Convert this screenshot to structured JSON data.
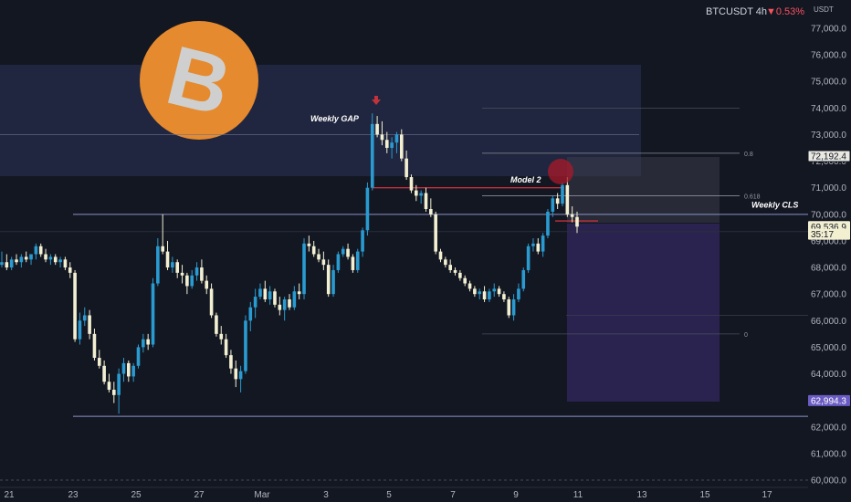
{
  "header": {
    "symbol": "BTCUSDT 4h",
    "change": "▼0.53%",
    "currency": "USDT"
  },
  "colors": {
    "background": "#131722",
    "up": "#2a9bd0",
    "down": "#f3f0d2",
    "gap_zone": "#222842",
    "target_zone": "#2a2350",
    "level_line": "#8b93c9",
    "model_line": "#c2313c",
    "logo_orange": "#e58a2e",
    "logo_b": "#cfcfcf"
  },
  "logo": {
    "icon": "bitcoin-logo",
    "letter": "B"
  },
  "chart_data": {
    "type": "candlestick",
    "ylim": [
      60000,
      78000
    ],
    "y_ticks": [
      "60,000.0",
      "61,000.0",
      "62,000.0",
      "63,000.0",
      "64,000.0",
      "65,000.0",
      "66,000.0",
      "67,000.0",
      "68,000.0",
      "69,000.0",
      "70,000.0",
      "71,000.0",
      "72,000.0",
      "73,000.0",
      "74,000.0",
      "75,000.0",
      "76,000.0",
      "77,000.0"
    ],
    "x_ticks": [
      "21",
      "23",
      "25",
      "27",
      "Mar",
      "3",
      "5",
      "7",
      "9",
      "11",
      "13",
      "15",
      "17"
    ],
    "price_labels": [
      {
        "name": "top-fib-label",
        "value": "72,192.4",
        "y": 72192.4
      },
      {
        "name": "current-price-label",
        "value": "69,536.9",
        "y": 69536.9
      },
      {
        "name": "countdown-label",
        "value": "35:17",
        "y": 69250
      },
      {
        "name": "target-label",
        "value": "62,994.3",
        "y": 62994.3
      }
    ],
    "annotations": [
      {
        "name": "weekly-gap-label",
        "text": "Weekly GAP"
      },
      {
        "name": "model2-label",
        "text": "Model 2"
      },
      {
        "name": "weekly-cls-label",
        "text": "Weekly CLS"
      }
    ],
    "fib_levels": [
      {
        "label": "0.8",
        "price": 72300
      },
      {
        "label": "0.618",
        "price": 70700
      },
      {
        "label": "0",
        "price": 65500
      }
    ],
    "levels": [
      {
        "name": "weekly-cls-line",
        "price": 70000
      },
      {
        "name": "range-low-line",
        "price": 62400
      },
      {
        "name": "model2-line",
        "price": 71000
      }
    ],
    "candles": [
      [
        68100,
        68600,
        68000,
        68200
      ],
      [
        68200,
        68500,
        67900,
        68000
      ],
      [
        68000,
        68400,
        67900,
        68300
      ],
      [
        68300,
        68500,
        68100,
        68200
      ],
      [
        68200,
        68500,
        68000,
        68400
      ],
      [
        68400,
        68600,
        68200,
        68300
      ],
      [
        68300,
        68500,
        68100,
        68500
      ],
      [
        68500,
        68900,
        68300,
        68800
      ],
      [
        68800,
        68900,
        68400,
        68500
      ],
      [
        68500,
        68700,
        68200,
        68300
      ],
      [
        68300,
        68500,
        68100,
        68400
      ],
      [
        68400,
        68500,
        68100,
        68200
      ],
      [
        68200,
        68400,
        68000,
        68300
      ],
      [
        68300,
        68400,
        67900,
        68000
      ],
      [
        68000,
        68200,
        67600,
        67800
      ],
      [
        67800,
        67900,
        65200,
        65300
      ],
      [
        65300,
        66300,
        65100,
        66000
      ],
      [
        66000,
        66500,
        65800,
        66200
      ],
      [
        66200,
        66400,
        65300,
        65500
      ],
      [
        65500,
        65700,
        64500,
        64600
      ],
      [
        64600,
        64900,
        64200,
        64300
      ],
      [
        64300,
        64500,
        63600,
        63700
      ],
      [
        63700,
        64000,
        63300,
        63400
      ],
      [
        63400,
        63700,
        62900,
        63200
      ],
      [
        63200,
        64200,
        62500,
        64000
      ],
      [
        64000,
        64600,
        63700,
        64400
      ],
      [
        64400,
        64500,
        63700,
        63900
      ],
      [
        63900,
        64400,
        63700,
        64300
      ],
      [
        64300,
        65100,
        64200,
        65000
      ],
      [
        65000,
        65500,
        64800,
        65300
      ],
      [
        65300,
        65500,
        64900,
        65100
      ],
      [
        65100,
        67600,
        65000,
        67400
      ],
      [
        67400,
        69100,
        67300,
        68800
      ],
      [
        68800,
        70000,
        68500,
        68600
      ],
      [
        68600,
        69000,
        67900,
        68000
      ],
      [
        68000,
        68400,
        67800,
        68200
      ],
      [
        68200,
        68300,
        67600,
        67800
      ],
      [
        67800,
        68100,
        67400,
        67700
      ],
      [
        67700,
        67800,
        67000,
        67300
      ],
      [
        67300,
        67900,
        67200,
        67700
      ],
      [
        67700,
        68200,
        67500,
        68000
      ],
      [
        68000,
        68300,
        67400,
        67500
      ],
      [
        67500,
        67700,
        67000,
        67200
      ],
      [
        67200,
        67400,
        66100,
        66200
      ],
      [
        66200,
        66300,
        65400,
        65500
      ],
      [
        65500,
        65800,
        65100,
        65300
      ],
      [
        65300,
        65500,
        64600,
        64700
      ],
      [
        64700,
        64900,
        64000,
        64200
      ],
      [
        64200,
        64500,
        63500,
        63800
      ],
      [
        63800,
        64300,
        63300,
        64100
      ],
      [
        64100,
        66200,
        64000,
        66000
      ],
      [
        66000,
        66700,
        65600,
        66500
      ],
      [
        66500,
        67200,
        66100,
        66900
      ],
      [
        66900,
        67400,
        66800,
        67200
      ],
      [
        67200,
        67500,
        66700,
        66800
      ],
      [
        66800,
        67300,
        66600,
        67100
      ],
      [
        67100,
        67200,
        66500,
        66600
      ],
      [
        66600,
        66900,
        66200,
        66400
      ],
      [
        66400,
        66900,
        66000,
        66800
      ],
      [
        66800,
        67000,
        66400,
        66500
      ],
      [
        66500,
        67300,
        66400,
        67100
      ],
      [
        67100,
        67400,
        66800,
        67000
      ],
      [
        67000,
        69100,
        66800,
        68900
      ],
      [
        68900,
        69200,
        68600,
        68800
      ],
      [
        68800,
        69000,
        68400,
        68500
      ],
      [
        68500,
        68700,
        68200,
        68300
      ],
      [
        68300,
        68600,
        67900,
        68100
      ],
      [
        68100,
        68300,
        66900,
        67000
      ],
      [
        67000,
        68100,
        66900,
        67900
      ],
      [
        67900,
        68600,
        67800,
        68500
      ],
      [
        68500,
        68800,
        68400,
        68700
      ],
      [
        68700,
        68900,
        68300,
        68400
      ],
      [
        68400,
        68500,
        67800,
        67900
      ],
      [
        67900,
        68700,
        67800,
        68600
      ],
      [
        68600,
        69500,
        68400,
        69400
      ],
      [
        69400,
        71200,
        69200,
        71000
      ],
      [
        71000,
        73800,
        70900,
        73400
      ],
      [
        73400,
        73700,
        72900,
        73000
      ],
      [
        73000,
        73500,
        72600,
        72800
      ],
      [
        72800,
        73100,
        72300,
        72500
      ],
      [
        72500,
        72900,
        72100,
        72700
      ],
      [
        72700,
        73100,
        72300,
        73000
      ],
      [
        73000,
        73200,
        72000,
        72100
      ],
      [
        72100,
        72400,
        71300,
        71400
      ],
      [
        71400,
        71500,
        70800,
        70900
      ],
      [
        70900,
        71100,
        70500,
        70700
      ],
      [
        70700,
        70900,
        70400,
        70800
      ],
      [
        70800,
        71000,
        70100,
        70200
      ],
      [
        70200,
        70600,
        69900,
        70000
      ],
      [
        70000,
        70100,
        68500,
        68600
      ],
      [
        68600,
        68700,
        68200,
        68300
      ],
      [
        68300,
        68400,
        68000,
        68100
      ],
      [
        68100,
        68300,
        67800,
        67900
      ],
      [
        67900,
        68000,
        67700,
        67800
      ],
      [
        67800,
        67900,
        67500,
        67600
      ],
      [
        67600,
        67700,
        67300,
        67400
      ],
      [
        67400,
        67500,
        67100,
        67200
      ],
      [
        67200,
        67300,
        66900,
        67000
      ],
      [
        67000,
        67200,
        66800,
        67100
      ],
      [
        67100,
        67300,
        66700,
        66800
      ],
      [
        66800,
        67200,
        66700,
        67100
      ],
      [
        67100,
        67400,
        66900,
        67200
      ],
      [
        67200,
        67300,
        66900,
        67000
      ],
      [
        67000,
        67100,
        66700,
        66800
      ],
      [
        66800,
        66900,
        66100,
        66200
      ],
      [
        66200,
        67000,
        66000,
        66800
      ],
      [
        66800,
        67400,
        66700,
        67200
      ],
      [
        67200,
        68000,
        67100,
        67900
      ],
      [
        67900,
        68900,
        67800,
        68800
      ],
      [
        68800,
        69100,
        68600,
        68900
      ],
      [
        68900,
        69100,
        68500,
        68600
      ],
      [
        68600,
        69300,
        68400,
        69200
      ],
      [
        69200,
        70200,
        69100,
        70100
      ],
      [
        70100,
        70700,
        69900,
        70600
      ],
      [
        70600,
        70800,
        70200,
        70400
      ],
      [
        70400,
        71200,
        70300,
        71100
      ],
      [
        71100,
        71400,
        69900,
        70000
      ],
      [
        70000,
        70300,
        69700,
        69900
      ],
      [
        69900,
        70100,
        69300,
        69537
      ]
    ]
  }
}
